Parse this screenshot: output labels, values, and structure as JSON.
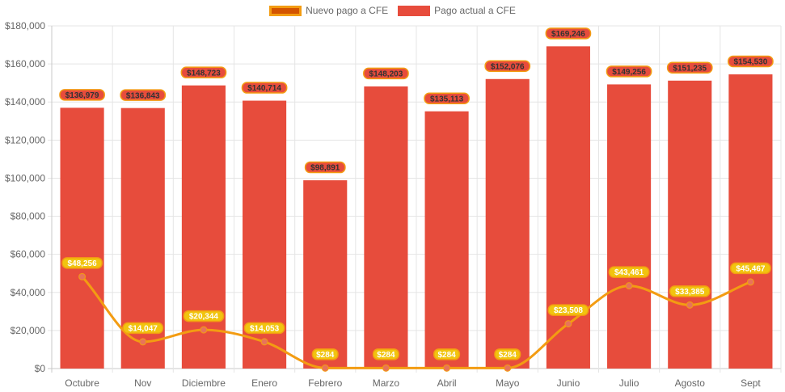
{
  "chart_data": {
    "type": "bar",
    "categories": [
      "Octubre",
      "Nov",
      "Diciembre",
      "Enero",
      "Febrero",
      "Marzo",
      "Abril",
      "Mayo",
      "Junio",
      "Julio",
      "Agosto",
      "Sept"
    ],
    "series": [
      {
        "name": "Nuevo pago a CFE",
        "type": "line",
        "values": [
          48256,
          14047,
          20344,
          14053,
          284,
          284,
          284,
          284,
          23508,
          43461,
          33385,
          45467
        ],
        "labels": [
          "$48,256",
          "$14,047",
          "$20,344",
          "$14,053",
          "$284",
          "$284",
          "$284",
          "$284",
          "$23,508",
          "$43,461",
          "$33,385",
          "$45,467"
        ],
        "color": "#f39c12",
        "fill": "#d35400"
      },
      {
        "name": "Pago actual a CFE",
        "type": "bar",
        "values": [
          136979,
          136843,
          148723,
          140714,
          98891,
          148203,
          135113,
          152076,
          169246,
          149256,
          151235,
          154530
        ],
        "labels": [
          "$136,979",
          "$136,843",
          "$148,723",
          "$140,714",
          "$98,891",
          "$148,203",
          "$135,113",
          "$152,076",
          "$169,246",
          "$149,256",
          "$151,235",
          "$154,530"
        ],
        "color": "#e74c3c"
      }
    ],
    "yticks": [
      "$0",
      "$20,000",
      "$40,000",
      "$60,000",
      "$80,000",
      "$100,000",
      "$120,000",
      "$140,000",
      "$160,000",
      "$180,000"
    ],
    "ylim": [
      0,
      180000
    ],
    "grid": true,
    "legend_position": "top"
  }
}
